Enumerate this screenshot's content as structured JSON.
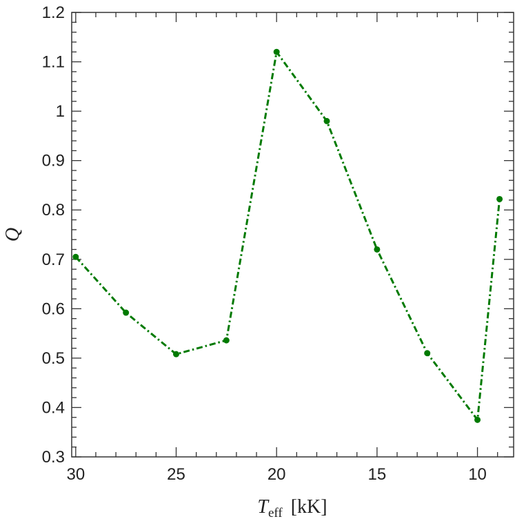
{
  "chart_data": {
    "type": "line",
    "xlabel": "T",
    "xlabel_subscript": "eff",
    "xlabel_unit": "[kK]",
    "ylabel": "Q",
    "xlim": [
      30.2,
      8.2
    ],
    "ylim": [
      0.3,
      1.2
    ],
    "x_reversed": true,
    "grid": false,
    "x_ticks": [
      30,
      25,
      20,
      15,
      10
    ],
    "x_tick_labels": [
      "30",
      "25",
      "20",
      "15",
      "10"
    ],
    "y_ticks": [
      0.3,
      0.4,
      0.5,
      0.6,
      0.7,
      0.8,
      0.9,
      1.0,
      1.1,
      1.2
    ],
    "y_tick_labels": [
      "0.3",
      "0.4",
      "0.5",
      "0.6",
      "0.7",
      "0.8",
      "0.9",
      "1",
      "1.1",
      "1.2"
    ],
    "series": [
      {
        "color": "#007a00",
        "line_style": "dash-dot",
        "marker": "circle",
        "x": [
          30,
          27.5,
          25,
          22.5,
          20,
          17.5,
          15,
          12.5,
          10,
          8.9
        ],
        "y": [
          0.705,
          0.592,
          0.508,
          0.536,
          1.12,
          0.98,
          0.72,
          0.51,
          0.375,
          0.822
        ]
      }
    ]
  }
}
